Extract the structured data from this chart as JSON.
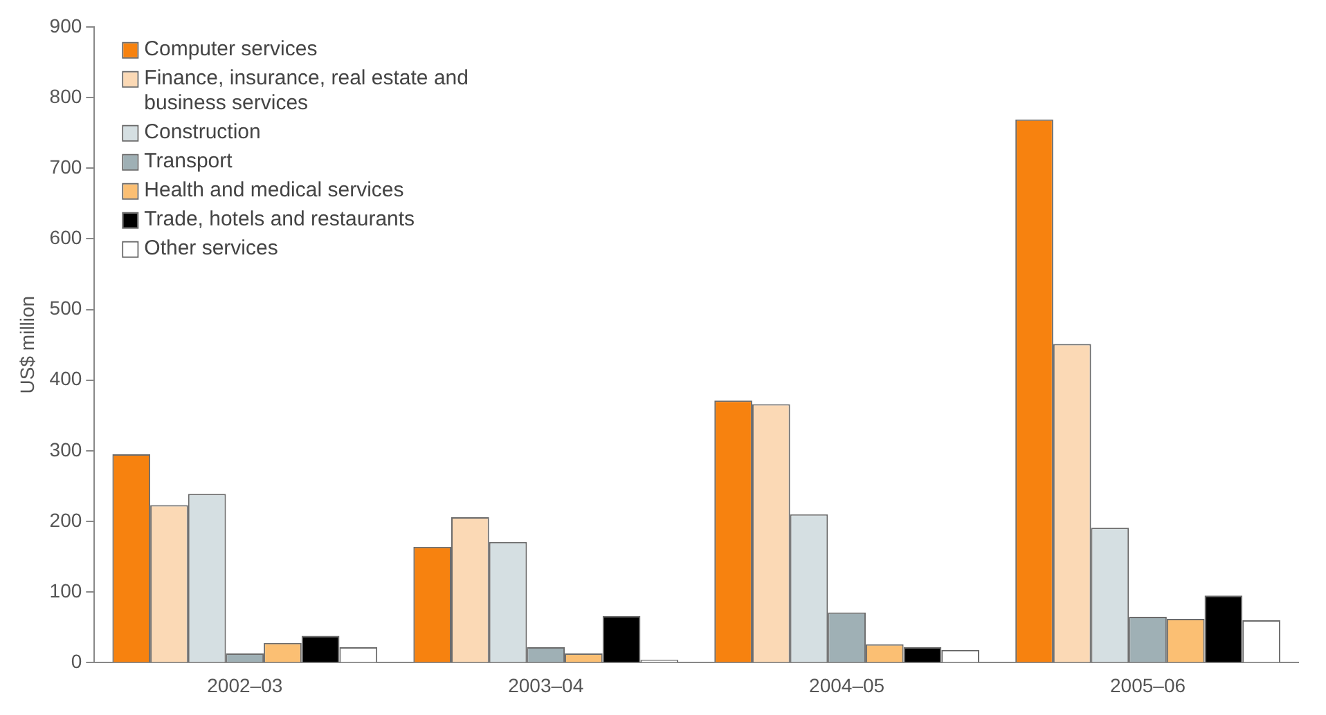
{
  "chart_data": {
    "type": "bar",
    "ylabel": "US$ million",
    "categories": [
      "2002–03",
      "2003–04",
      "2004–05",
      "2005–06"
    ],
    "series": [
      {
        "name": "Computer services",
        "color": "#f7820f",
        "values": [
          295,
          164,
          371,
          769
        ]
      },
      {
        "name": "Finance, insurance, real estate and business services",
        "color": "#fbd9b5",
        "values": [
          223,
          206,
          366,
          451
        ]
      },
      {
        "name": "Construction",
        "color": "#d5dfe2",
        "values": [
          239,
          171,
          210,
          191
        ]
      },
      {
        "name": "Transport",
        "color": "#9fb0b5",
        "values": [
          13,
          22,
          71,
          65
        ]
      },
      {
        "name": "Health and medical services",
        "color": "#fbbf73",
        "values": [
          28,
          13,
          26,
          62
        ]
      },
      {
        "name": "Trade, hotels and restaurants",
        "color": "#000000",
        "values": [
          38,
          66,
          22,
          95
        ]
      },
      {
        "name": "Other services",
        "color": "#ffffff",
        "values": [
          22,
          4,
          18,
          60
        ]
      }
    ],
    "ylim": [
      0,
      900
    ],
    "yticks": [
      0,
      100,
      200,
      300,
      400,
      500,
      600,
      700,
      800,
      900
    ],
    "grid": false,
    "legend": "top left"
  }
}
